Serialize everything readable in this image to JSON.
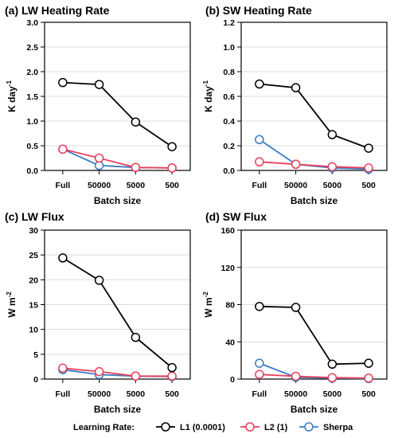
{
  "legend": {
    "title": "Learning Rate:",
    "entries": [
      {
        "label": "L1 (0.0001)",
        "color": "#000000"
      },
      {
        "label": "L2 (1)",
        "color": "#e8405a"
      },
      {
        "label": "Sherpa",
        "color": "#3a7dc0"
      }
    ]
  },
  "chart_data": [
    {
      "type": "line",
      "title": "(a) LW Heating Rate",
      "xlabel": "Batch size",
      "ylabel_base": "K day",
      "ylabel_sup": "-1",
      "categories": [
        "Full",
        "50000",
        "5000",
        "500"
      ],
      "ylim": [
        0,
        3.0
      ],
      "yticks": [
        "0.0",
        "0.5",
        "1.0",
        "1.5",
        "2.0",
        "2.5",
        "3.0"
      ],
      "ytick_values": [
        0,
        0.5,
        1.0,
        1.5,
        2.0,
        2.5,
        3.0
      ],
      "grid": true,
      "series": [
        {
          "name": "L1 (0.0001)",
          "values": [
            1.78,
            1.74,
            0.98,
            0.48
          ]
        },
        {
          "name": "L2 (1)",
          "values": [
            0.43,
            0.25,
            0.06,
            0.05
          ]
        },
        {
          "name": "Sherpa",
          "values": [
            0.43,
            0.1,
            0.06,
            0.05
          ]
        }
      ]
    },
    {
      "type": "line",
      "title": "(b) SW Heating Rate",
      "xlabel": "Batch size",
      "ylabel_base": "K day",
      "ylabel_sup": "-1",
      "categories": [
        "Full",
        "50000",
        "5000",
        "500"
      ],
      "ylim": [
        0,
        1.2
      ],
      "yticks": [
        "0.0",
        "0.2",
        "0.4",
        "0.6",
        "0.8",
        "1.0",
        "1.2"
      ],
      "ytick_values": [
        0,
        0.2,
        0.4,
        0.6,
        0.8,
        1.0,
        1.2
      ],
      "grid": true,
      "series": [
        {
          "name": "L1 (0.0001)",
          "values": [
            0.7,
            0.67,
            0.29,
            0.18
          ]
        },
        {
          "name": "L2 (1)",
          "values": [
            0.07,
            0.05,
            0.03,
            0.02
          ]
        },
        {
          "name": "Sherpa",
          "values": [
            0.25,
            0.05,
            0.02,
            0.01
          ]
        }
      ]
    },
    {
      "type": "line",
      "title": "(c) LW Flux",
      "xlabel": "Batch size",
      "ylabel_base": "W m",
      "ylabel_sup": "-2",
      "categories": [
        "Full",
        "50000",
        "5000",
        "500"
      ],
      "ylim": [
        0,
        30
      ],
      "yticks": [
        "0",
        "5",
        "10",
        "15",
        "20",
        "25",
        "30"
      ],
      "ytick_values": [
        0,
        5,
        10,
        15,
        20,
        25,
        30
      ],
      "grid": true,
      "series": [
        {
          "name": "L1 (0.0001)",
          "values": [
            24.4,
            19.9,
            8.4,
            2.3
          ]
        },
        {
          "name": "L2 (1)",
          "values": [
            2.2,
            1.5,
            0.6,
            0.6
          ]
        },
        {
          "name": "Sherpa",
          "values": [
            1.9,
            0.9,
            0.6,
            0.5
          ]
        }
      ]
    },
    {
      "type": "line",
      "title": "(d) SW Flux",
      "xlabel": "Batch size",
      "ylabel_base": "W m",
      "ylabel_sup": "-2",
      "categories": [
        "Full",
        "50000",
        "5000",
        "500"
      ],
      "ylim": [
        0,
        160
      ],
      "yticks": [
        "0",
        "40",
        "80",
        "120",
        "160"
      ],
      "ytick_values": [
        0,
        40,
        80,
        120,
        160
      ],
      "grid": true,
      "series": [
        {
          "name": "L1 (0.0001)",
          "values": [
            78,
            77,
            16,
            17
          ]
        },
        {
          "name": "L2 (1)",
          "values": [
            5,
            3,
            1.5,
            1
          ]
        },
        {
          "name": "Sherpa",
          "values": [
            17,
            2,
            1,
            0.5
          ]
        }
      ]
    }
  ]
}
